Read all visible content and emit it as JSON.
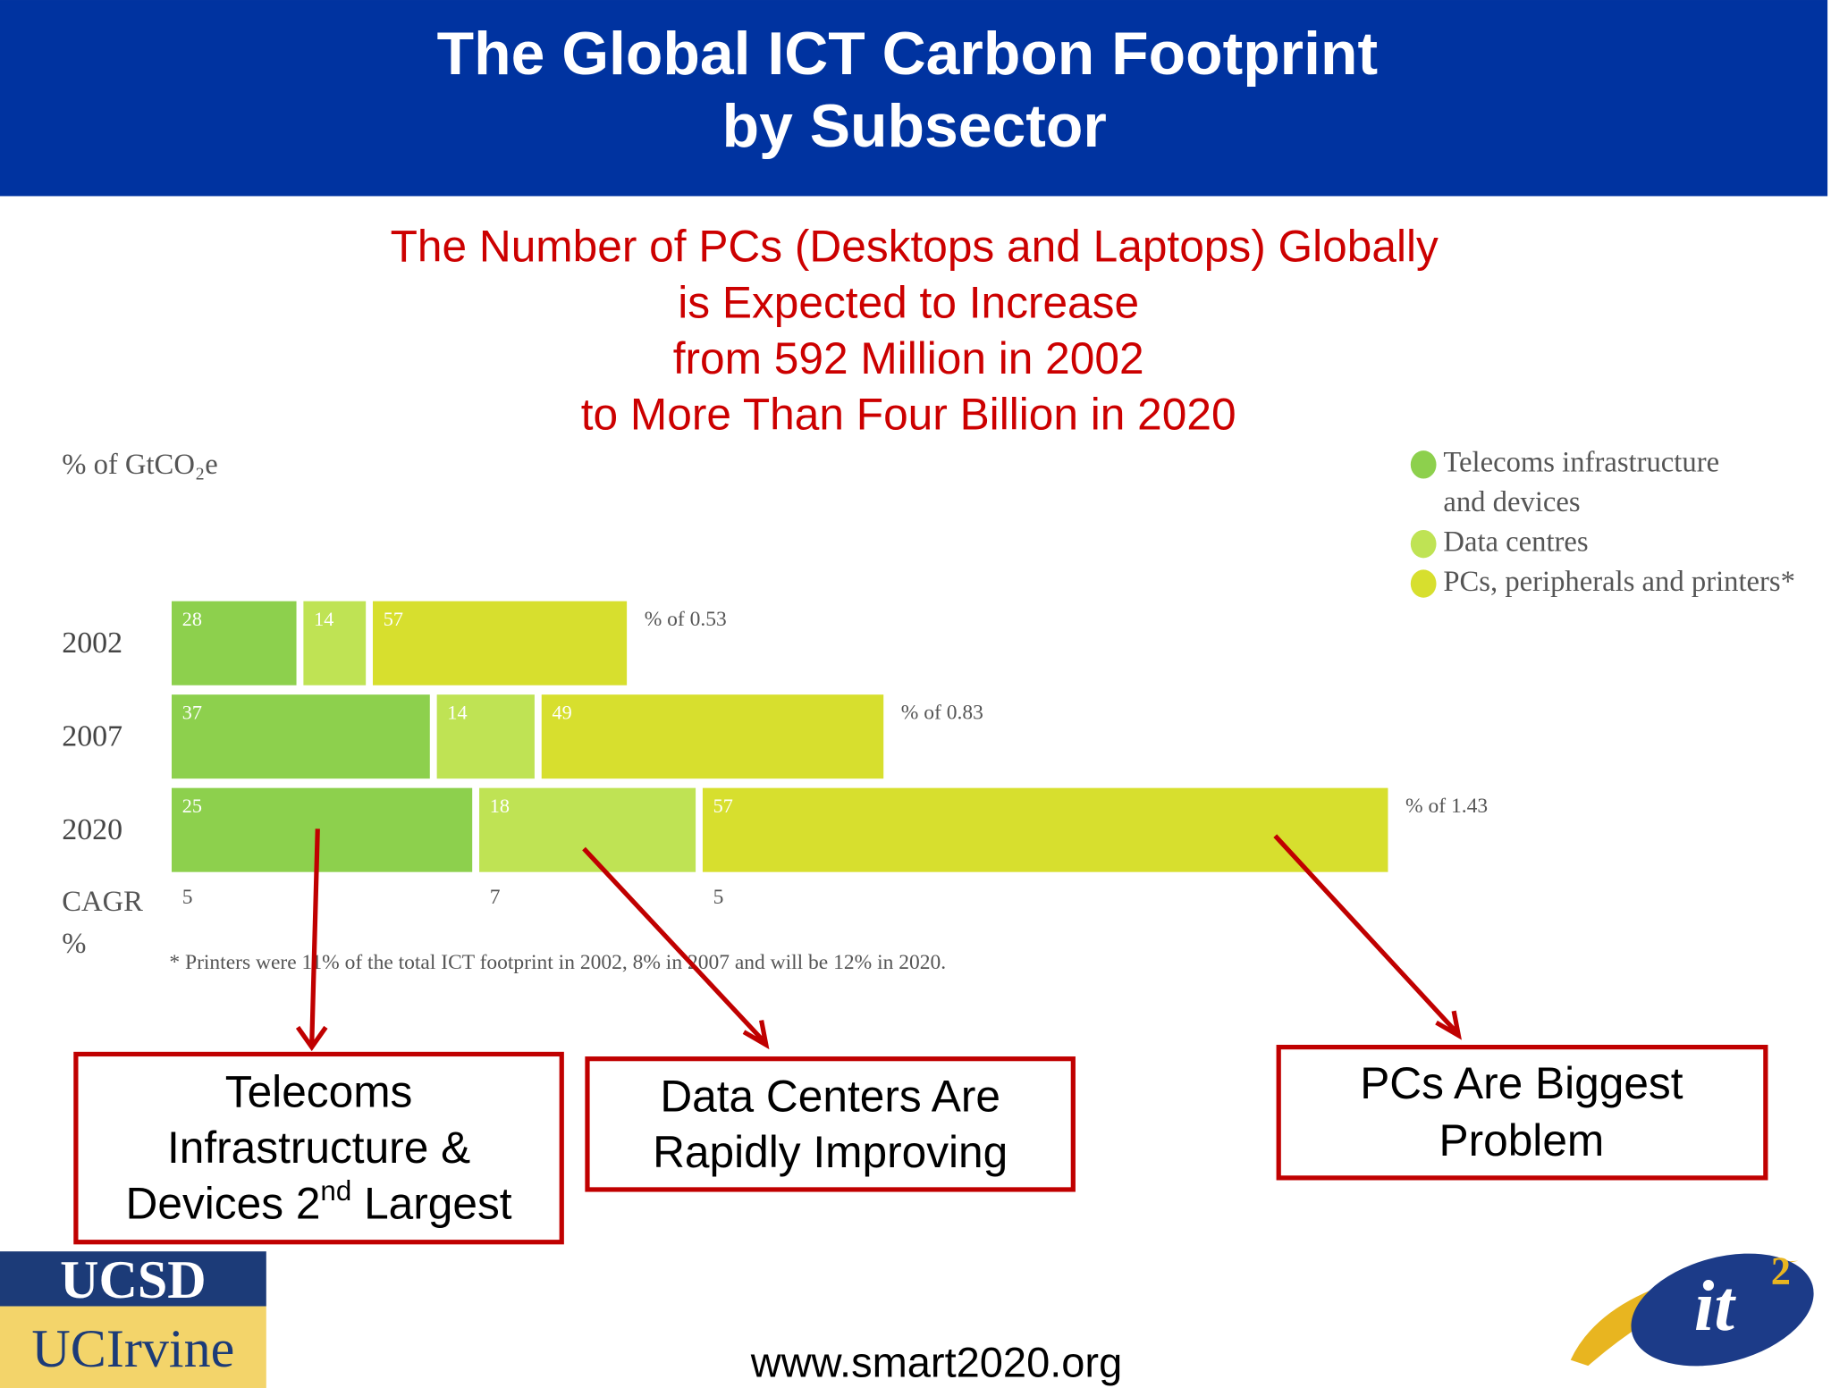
{
  "header": {
    "title_lines": [
      "The Global ICT Carbon Footprint",
      "by Subsector"
    ]
  },
  "subtitle_lines": [
    "The Number of PCs (Desktops and Laptops) Globally",
    "is Expected to Increase",
    "from 592 Million in 2002",
    "to More Than Four Billion in 2020"
  ],
  "chart_data": {
    "type": "bar",
    "ylabel": "% of GtCO₂e",
    "categories": [
      "2002",
      "2007",
      "2020"
    ],
    "series": [
      {
        "name": "Telecoms infrastructure and devices",
        "color": "#8dd04d",
        "values": [
          28,
          37,
          25
        ]
      },
      {
        "name": "Data centres",
        "color": "#bfe354",
        "values": [
          14,
          14,
          18
        ]
      },
      {
        "name": "PCs, peripherals and printers*",
        "color": "#d7df2e",
        "values": [
          57,
          49,
          57
        ]
      }
    ],
    "totals": [
      0.53,
      0.83,
      1.43
    ],
    "total_labels": [
      "% of 0.53",
      "% of 0.83",
      "% of 1.43"
    ],
    "cagr_label": "CAGR %",
    "cagr": [
      5,
      7,
      5
    ],
    "footnote": "* Printers were 11% of the total ICT footprint in 2002, 8% in 2007 and will be 12% in 2020."
  },
  "callouts": [
    {
      "lines": [
        "Telecoms",
        "Infrastructure &"
      ],
      "last": {
        "pre": "Devices 2",
        "sup": "nd",
        "post": " Largest"
      }
    },
    {
      "lines": [
        "Data Centers Are",
        "Rapidly Improving"
      ]
    },
    {
      "lines": [
        "PCs Are Biggest",
        "Problem"
      ]
    }
  ],
  "logos": {
    "top": "UCSD",
    "bottom": "UCIrvine",
    "right": "it",
    "right_sup": "2"
  },
  "footer_url": "www.smart2020.org"
}
